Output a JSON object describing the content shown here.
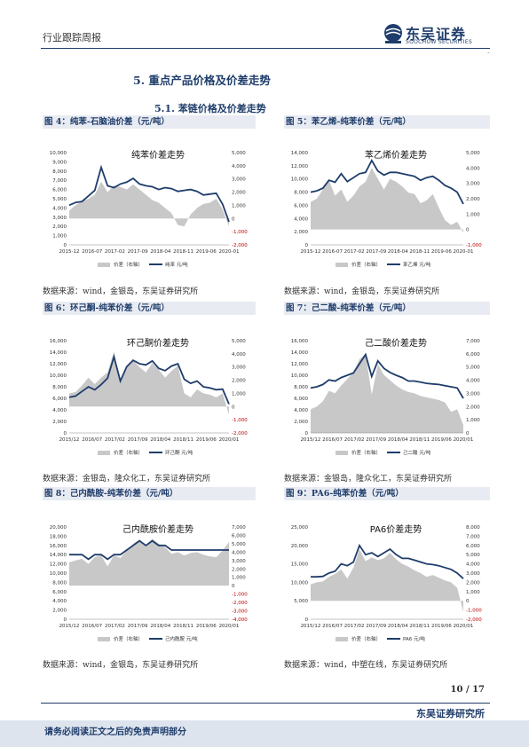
{
  "header": {
    "report_type": "行业跟踪周报",
    "logo_cn": "东吴证券",
    "logo_en": "SOOCHOW SECURITIES",
    "dash": "-"
  },
  "section": {
    "title": "5.  重点产品价格及价差走势",
    "subtitle": "5.1.  苯链价格及价差走势"
  },
  "figures": [
    {
      "title": "图 4：纯苯-石脑油价差（元/吨）",
      "source": "数据来源：wind，金银岛，东吴证券研究所"
    },
    {
      "title": "图 5：苯乙烯-纯苯价差（元/吨）",
      "source": "数据来源：wind，金银岛，东吴证券研究所"
    },
    {
      "title": "图 6：环己酮-纯苯价差（元/吨）",
      "source": "数据来源：金银岛，隆众化工，东吴证券研究所"
    },
    {
      "title": "图 7：己二酸-纯苯价差（元/吨）",
      "source": "数据来源：金银岛，隆众化工，东吴证券研究所"
    },
    {
      "title": "图 8：己内酰胺-纯苯价差（元/吨）",
      "source": "数据来源：wind，金银岛，东吴证券研究所"
    },
    {
      "title": "图 9：PA6-纯苯价差（元/吨）",
      "source": "数据来源：wind，中塑在线，东吴证券研究所"
    }
  ],
  "footer": {
    "page": "10 / 17",
    "company": "东吴证券研究所",
    "disclaimer": "请务必阅读正文之后的免责声明部分"
  },
  "colors": {
    "line": "#1f3d6b",
    "area": "#c8c8c8",
    "negative": "#c00000"
  },
  "chart_data": [
    {
      "type": "area",
      "title": "纯苯价差走势",
      "x": [
        "2015-12",
        "2016-07",
        "2017-02",
        "2017-09",
        "2018-04",
        "2018-11",
        "2019-06",
        "2020-01"
      ],
      "y_left": [
        0,
        1000,
        2000,
        3000,
        4000,
        5000,
        6000,
        7000,
        8000,
        9000,
        10000
      ],
      "y_right": [
        -2000,
        -1000,
        0,
        1000,
        2000,
        3000,
        4000,
        5000
      ],
      "line": [
        4300,
        4600,
        4700,
        5300,
        5900,
        8400,
        6400,
        6200,
        6600,
        6800,
        7200,
        6600,
        6400,
        6300,
        6000,
        6200,
        6100,
        5800,
        5900,
        6000,
        5800,
        5400,
        5500,
        5600,
        4400,
        2500
      ],
      "spread": [
        600,
        1000,
        1300,
        1500,
        1800,
        2800,
        2000,
        2500,
        2400,
        2200,
        2600,
        2200,
        1800,
        1400,
        1200,
        800,
        400,
        -500,
        -600,
        300,
        800,
        1100,
        1200,
        1500,
        700,
        -600
      ],
      "series": [
        {
          "name": "价差（右轴）"
        },
        {
          "name": "纯苯 元/吨"
        }
      ]
    },
    {
      "type": "area",
      "title": "苯乙烯价差走势",
      "x": [
        "2015-12",
        "2016-07",
        "2017-02",
        "2017-09",
        "2018-04",
        "2018-11",
        "2019-06",
        "2020-01"
      ],
      "y_left": [
        0,
        2000,
        4000,
        6000,
        8000,
        10000,
        12000,
        14000
      ],
      "y_right": [
        -1000,
        0,
        1000,
        2000,
        3000,
        4000,
        5000
      ],
      "line": [
        8000,
        8200,
        8600,
        9800,
        9500,
        10800,
        9600,
        10200,
        10800,
        11000,
        12800,
        11200,
        10600,
        11000,
        11000,
        10800,
        10600,
        10400,
        9800,
        10200,
        10400,
        9800,
        9000,
        8600,
        8000,
        6200
      ],
      "spread": [
        1800,
        2000,
        2600,
        3200,
        2200,
        2600,
        1800,
        2200,
        2800,
        3100,
        4000,
        3300,
        2600,
        3300,
        3100,
        2800,
        2400,
        2300,
        1700,
        1900,
        2300,
        1400,
        600,
        300,
        500,
        -200
      ],
      "series": [
        {
          "name": "价差（右轴）"
        },
        {
          "name": "苯乙烯 元/吨"
        }
      ]
    },
    {
      "type": "area",
      "title": "环己酮价差走势",
      "x": [
        "2015/12",
        "2016/07",
        "2017/02",
        "2017/09",
        "2018/04",
        "2018/11",
        "2019/06",
        "2020/01"
      ],
      "y_left": [
        0,
        2000,
        4000,
        6000,
        8000,
        10000,
        12000,
        14000,
        16000
      ],
      "y_right": [
        -2000,
        -1000,
        0,
        1000,
        2000,
        3000,
        4000,
        5000
      ],
      "line": [
        6200,
        6400,
        7200,
        8000,
        7500,
        8400,
        9500,
        13200,
        9000,
        11500,
        12600,
        12000,
        11800,
        12500,
        11200,
        10800,
        11600,
        12000,
        9300,
        8600,
        9000,
        8000,
        7800,
        7500,
        7600,
        5000
      ],
      "spread": [
        1000,
        1100,
        1600,
        2200,
        1700,
        2200,
        2600,
        4200,
        1800,
        3000,
        3500,
        3000,
        2600,
        3300,
        2800,
        2200,
        2700,
        3100,
        1000,
        700,
        1300,
        1000,
        900,
        700,
        1000,
        -600
      ],
      "series": [
        {
          "name": "价差（右轴）"
        },
        {
          "name": "环己酮 元/吨"
        }
      ]
    },
    {
      "type": "area",
      "title": "己二酸价差走势",
      "x": [
        "2015/12",
        "2016/07",
        "2017/02",
        "2017/09",
        "2018/04",
        "2018/11",
        "2019/06",
        "2020/01"
      ],
      "y_left": [
        0,
        2000,
        4000,
        6000,
        8000,
        10000,
        12000,
        14000,
        16000
      ],
      "y_right": [
        0,
        1000,
        2000,
        3000,
        4000,
        5000,
        6000,
        7000
      ],
      "line": [
        7800,
        8000,
        8400,
        9200,
        9000,
        9600,
        10000,
        10400,
        12000,
        13600,
        9800,
        12500,
        11200,
        10500,
        10000,
        9600,
        9000,
        9000,
        8800,
        8600,
        8500,
        8400,
        8200,
        8000,
        7800,
        6000
      ],
      "spread": [
        1800,
        2000,
        2400,
        3200,
        3000,
        3600,
        4100,
        4600,
        5600,
        6000,
        2900,
        5200,
        4400,
        4000,
        3600,
        3300,
        3100,
        3000,
        2800,
        2700,
        2600,
        2500,
        2300,
        1600,
        1800,
        600
      ],
      "series": [
        {
          "name": "价差（右轴）"
        },
        {
          "name": "己二酸 元/吨"
        }
      ]
    },
    {
      "type": "area",
      "title": "己内酰胺价差走势",
      "x": [
        "2015/12",
        "2016/07",
        "2017/02",
        "2017/09",
        "2018/04",
        "2018/11",
        "2019/06",
        "2020/01"
      ],
      "y_left": [
        0,
        2000,
        4000,
        6000,
        8000,
        10000,
        12000,
        14000,
        16000,
        18000,
        20000
      ],
      "y_right": [
        -4000,
        -3000,
        -2000,
        -1000,
        0,
        1000,
        2000,
        3000,
        4000,
        5000,
        6000,
        7000
      ],
      "line": [
        14000,
        14000,
        14000,
        13000,
        14000,
        14000,
        13000,
        14000,
        14000,
        15000,
        16000,
        17000,
        16000,
        17000,
        16000,
        16000,
        15000,
        15000,
        15000,
        15000,
        15000,
        15000,
        15000,
        15000,
        15000,
        15000
      ],
      "spread": [
        2800,
        3000,
        3200,
        2600,
        3400,
        3600,
        2300,
        3600,
        3300,
        4200,
        5000,
        5500,
        4800,
        5600,
        5000,
        4600,
        3800,
        4000,
        3600,
        3900,
        4000,
        3700,
        3500,
        3400,
        4200,
        5200
      ],
      "series": [
        {
          "name": "价差（右轴）"
        },
        {
          "name": "己内酰胺 元/吨"
        }
      ]
    },
    {
      "type": "area",
      "title": "PA6价差走势",
      "x": [
        "2015/12",
        "2016/07",
        "2017/02",
        "2017/09",
        "2018/04",
        "2018/11",
        "2019/06",
        "2020/01"
      ],
      "y_left": [
        0,
        5000,
        10000,
        15000,
        20000,
        25000
      ],
      "y_right": [
        -2000,
        -1000,
        0,
        1000,
        2000,
        3000,
        4000,
        5000,
        6000,
        7000,
        8000
      ],
      "line": [
        11500,
        11500,
        11600,
        12500,
        13000,
        15000,
        14500,
        15500,
        20000,
        17500,
        18000,
        17000,
        18000,
        19000,
        17500,
        16500,
        16500,
        16000,
        15500,
        15000,
        14800,
        14500,
        14000,
        13500,
        12500,
        11000
      ],
      "spread": [
        1800,
        2000,
        2100,
        2600,
        2900,
        3400,
        2400,
        3600,
        5600,
        4300,
        4700,
        4400,
        4600,
        5200,
        4500,
        4000,
        3700,
        3300,
        3000,
        2600,
        2800,
        2500,
        2200,
        2000,
        1400,
        -1200
      ],
      "series": [
        {
          "name": "价差（右轴）"
        },
        {
          "name": "PA6 元/吨"
        }
      ]
    }
  ]
}
